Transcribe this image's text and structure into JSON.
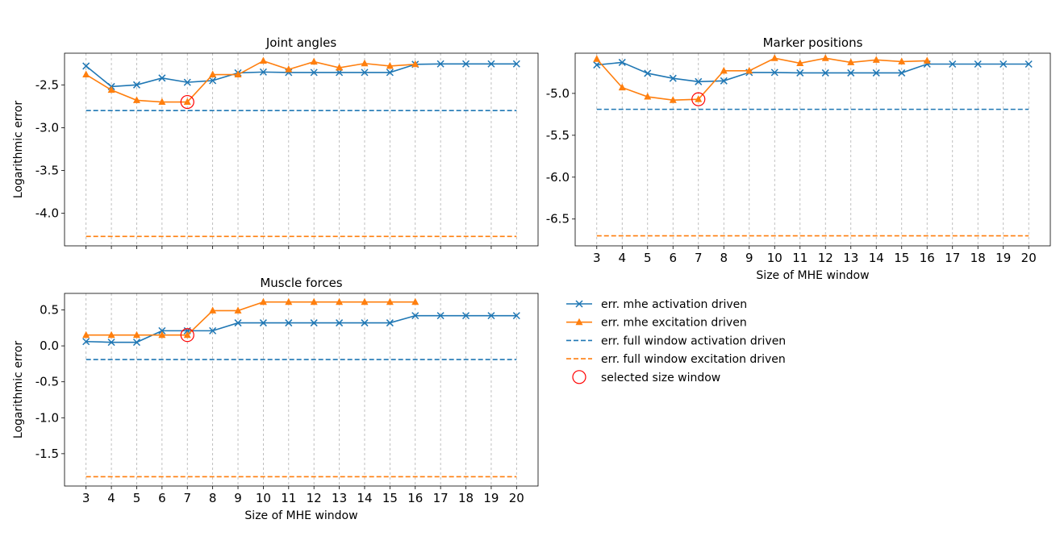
{
  "colors": {
    "activation": "#1f77b4",
    "excitation": "#ff7f0e",
    "selected": "#ff0000",
    "grid": "#b0b0b0"
  },
  "chart_data": [
    {
      "type": "line",
      "title": "Joint angles",
      "xlabel": "",
      "ylabel": "Logarithmic error",
      "x": [
        3,
        4,
        5,
        6,
        7,
        8,
        9,
        10,
        11,
        12,
        13,
        14,
        15,
        16,
        17,
        18,
        19,
        20
      ],
      "xlim": [
        2.15,
        20.85
      ],
      "ylim": [
        -4.38,
        -2.13
      ],
      "yticks": [
        -2.5,
        -3.0,
        -3.5,
        -4.0
      ],
      "ytick_labels": [
        "-2.5",
        "-3.0",
        "-3.5",
        "-4.0"
      ],
      "show_xtick_labels": false,
      "grid": "x",
      "series": [
        {
          "name": "err. mhe activation driven",
          "style": "line-x",
          "color": "activation",
          "values": [
            -2.28,
            -2.52,
            -2.5,
            -2.42,
            -2.47,
            -2.45,
            -2.36,
            -2.35,
            -2.355,
            -2.355,
            -2.355,
            -2.355,
            -2.355,
            -2.26,
            -2.255,
            -2.255,
            -2.255,
            -2.255
          ]
        },
        {
          "name": "err. mhe excitation driven",
          "style": "line-triangle",
          "color": "excitation",
          "values": [
            -2.38,
            -2.56,
            -2.68,
            -2.7,
            -2.7,
            -2.38,
            -2.38,
            -2.22,
            -2.32,
            -2.23,
            -2.3,
            -2.25,
            -2.28,
            -2.26,
            null,
            null,
            null,
            null
          ]
        },
        {
          "name": "err. full window activation driven",
          "style": "dashed",
          "color": "activation",
          "value": -2.8
        },
        {
          "name": "err. full window excitation driven",
          "style": "dashed",
          "color": "excitation",
          "value": -4.27
        },
        {
          "name": "selected size window",
          "style": "circle",
          "color": "selected",
          "x": 7,
          "y": -2.7
        }
      ]
    },
    {
      "type": "line",
      "title": "Marker positions",
      "xlabel": "Size of MHE window",
      "ylabel": "",
      "x": [
        3,
        4,
        5,
        6,
        7,
        8,
        9,
        10,
        11,
        12,
        13,
        14,
        15,
        16,
        17,
        18,
        19,
        20
      ],
      "xlim": [
        2.15,
        20.85
      ],
      "ylim": [
        -6.82,
        -4.52
      ],
      "yticks": [
        -5.0,
        -5.5,
        -6.0,
        -6.5
      ],
      "ytick_labels": [
        "-5.0",
        "-5.5",
        "-6.0",
        "-6.5"
      ],
      "xtick_labels": [
        "3",
        "4",
        "5",
        "6",
        "7",
        "8",
        "9",
        "10",
        "11",
        "12",
        "13",
        "14",
        "15",
        "16",
        "17",
        "18",
        "19",
        "20"
      ],
      "show_xtick_labels": true,
      "grid": "x",
      "series": [
        {
          "name": "err. mhe activation driven",
          "style": "line-x",
          "color": "activation",
          "values": [
            -4.66,
            -4.63,
            -4.76,
            -4.82,
            -4.86,
            -4.85,
            -4.75,
            -4.75,
            -4.755,
            -4.755,
            -4.755,
            -4.755,
            -4.755,
            -4.65,
            -4.65,
            -4.65,
            -4.65,
            -4.65
          ]
        },
        {
          "name": "err. mhe excitation driven",
          "style": "line-triangle",
          "color": "excitation",
          "values": [
            -4.59,
            -4.93,
            -5.04,
            -5.08,
            -5.07,
            -4.73,
            -4.73,
            -4.58,
            -4.64,
            -4.58,
            -4.63,
            -4.6,
            -4.62,
            -4.61,
            null,
            null,
            null,
            null
          ]
        },
        {
          "name": "err. full window activation driven",
          "style": "dashed",
          "color": "activation",
          "value": -5.19
        },
        {
          "name": "err. full window excitation driven",
          "style": "dashed",
          "color": "excitation",
          "value": -6.7
        },
        {
          "name": "selected size window",
          "style": "circle",
          "color": "selected",
          "x": 7,
          "y": -5.07
        }
      ]
    },
    {
      "type": "line",
      "title": "Muscle forces",
      "xlabel": "Size of MHE window",
      "ylabel": "Logarithmic error",
      "x": [
        3,
        4,
        5,
        6,
        7,
        8,
        9,
        10,
        11,
        12,
        13,
        14,
        15,
        16,
        17,
        18,
        19,
        20
      ],
      "xlim": [
        2.15,
        20.85
      ],
      "ylim": [
        -1.95,
        0.73
      ],
      "yticks": [
        0.5,
        0.0,
        -0.5,
        -1.0,
        -1.5
      ],
      "ytick_labels": [
        "0.5",
        "0.0",
        "-0.5",
        "-1.0",
        "-1.5"
      ],
      "xtick_labels": [
        "3",
        "4",
        "5",
        "6",
        "7",
        "8",
        "9",
        "10",
        "11",
        "12",
        "13",
        "14",
        "15",
        "16",
        "17",
        "18",
        "19",
        "20"
      ],
      "show_xtick_labels": true,
      "grid": "x",
      "series": [
        {
          "name": "err. mhe activation driven",
          "style": "line-x",
          "color": "activation",
          "values": [
            0.06,
            0.05,
            0.05,
            0.21,
            0.21,
            0.21,
            0.32,
            0.32,
            0.32,
            0.32,
            0.32,
            0.32,
            0.32,
            0.42,
            0.42,
            0.42,
            0.42,
            0.42
          ]
        },
        {
          "name": "err. mhe excitation driven",
          "style": "line-triangle",
          "color": "excitation",
          "values": [
            0.15,
            0.15,
            0.15,
            0.15,
            0.15,
            0.49,
            0.49,
            0.61,
            0.61,
            0.61,
            0.61,
            0.61,
            0.61,
            0.61,
            null,
            null,
            null,
            null
          ]
        },
        {
          "name": "err. full window activation driven",
          "style": "dashed",
          "color": "activation",
          "value": -0.19
        },
        {
          "name": "err. full window excitation driven",
          "style": "dashed",
          "color": "excitation",
          "value": -1.82
        },
        {
          "name": "selected size window",
          "style": "circle",
          "color": "selected",
          "x": 7,
          "y": 0.15
        }
      ]
    }
  ],
  "legend": {
    "placement": "lower-right-panel",
    "items": [
      {
        "label": "err. mhe activation driven",
        "style": "line-x",
        "color": "activation"
      },
      {
        "label": "err. mhe excitation driven",
        "style": "line-triangle",
        "color": "excitation"
      },
      {
        "label": "err. full window activation driven",
        "style": "dashed",
        "color": "activation"
      },
      {
        "label": "err. full window excitation driven",
        "style": "dashed",
        "color": "excitation"
      },
      {
        "label": "selected size window",
        "style": "circle",
        "color": "selected"
      }
    ]
  }
}
